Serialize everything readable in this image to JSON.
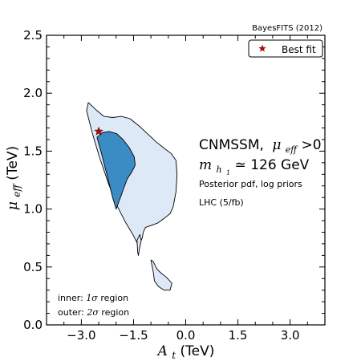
{
  "chart_data": {
    "type": "contour",
    "source_label": "BayesFITS (2012)",
    "xlabel": {
      "symbol": "A",
      "subscript": "t",
      "unit": " (TeV)"
    },
    "ylabel": {
      "symbol": "μ",
      "subscript": "eff",
      "unit": " (TeV)"
    },
    "xlim": [
      -4.0,
      4.0
    ],
    "ylim": [
      0.0,
      2.5
    ],
    "x_ticks": [
      {
        "value": -3.0,
        "label": "−3.0"
      },
      {
        "value": -1.5,
        "label": "−1.5"
      },
      {
        "value": 0.0,
        "label": "0.0"
      },
      {
        "value": 1.5,
        "label": "1.5"
      },
      {
        "value": 3.0,
        "label": "3.0"
      }
    ],
    "y_ticks": [
      {
        "value": 0.0,
        "label": "0.0"
      },
      {
        "value": 0.5,
        "label": "0.5"
      },
      {
        "value": 1.0,
        "label": "1.0"
      },
      {
        "value": 1.5,
        "label": "1.5"
      },
      {
        "value": 2.0,
        "label": "2.0"
      },
      {
        "value": 2.5,
        "label": "2.5"
      }
    ],
    "grid": false,
    "legend": {
      "position": "top-right",
      "entries": [
        {
          "label": "Best fit",
          "marker": "star",
          "color": "#a01010"
        }
      ]
    },
    "colors": {
      "inner": "#3b8cc4",
      "outer": "#dde9f6",
      "outline": "#000000",
      "best_fit": "#a01010"
    },
    "best_fit": {
      "x": -2.5,
      "y": 1.67
    },
    "regions": [
      {
        "name": "2σ region",
        "level": "outer",
        "points": [
          [
            -2.8,
            1.92
          ],
          [
            -2.55,
            1.85
          ],
          [
            -2.35,
            1.8
          ],
          [
            -2.1,
            1.79
          ],
          [
            -1.85,
            1.8
          ],
          [
            -1.6,
            1.78
          ],
          [
            -1.35,
            1.72
          ],
          [
            -1.1,
            1.65
          ],
          [
            -0.85,
            1.58
          ],
          [
            -0.6,
            1.52
          ],
          [
            -0.42,
            1.48
          ],
          [
            -0.28,
            1.42
          ],
          [
            -0.25,
            1.3
          ],
          [
            -0.28,
            1.15
          ],
          [
            -0.36,
            1.02
          ],
          [
            -0.45,
            0.96
          ],
          [
            -0.62,
            0.92
          ],
          [
            -0.8,
            0.88
          ],
          [
            -0.98,
            0.86
          ],
          [
            -1.08,
            0.85
          ],
          [
            -1.16,
            0.84
          ],
          [
            -1.22,
            0.8
          ],
          [
            -1.25,
            0.75
          ],
          [
            -1.35,
            0.68
          ],
          [
            -1.5,
            0.77
          ],
          [
            -1.72,
            0.88
          ],
          [
            -1.96,
            1.02
          ],
          [
            -2.22,
            1.22
          ],
          [
            -2.48,
            1.45
          ],
          [
            -2.68,
            1.65
          ],
          [
            -2.85,
            1.85
          ],
          [
            -2.8,
            1.92
          ]
        ]
      },
      {
        "name": "2σ region",
        "level": "outer",
        "points": [
          [
            -1.4,
            0.73
          ],
          [
            -1.38,
            0.63
          ],
          [
            -1.36,
            0.6
          ],
          [
            -1.34,
            0.64
          ],
          [
            -1.28,
            0.73
          ],
          [
            -1.32,
            0.78
          ],
          [
            -1.4,
            0.73
          ]
        ]
      },
      {
        "name": "2σ region",
        "level": "outer",
        "points": [
          [
            -1.0,
            0.56
          ],
          [
            -0.93,
            0.45
          ],
          [
            -0.9,
            0.38
          ],
          [
            -0.78,
            0.33
          ],
          [
            -0.62,
            0.3
          ],
          [
            -0.45,
            0.3
          ],
          [
            -0.4,
            0.36
          ],
          [
            -0.55,
            0.41
          ],
          [
            -0.72,
            0.45
          ],
          [
            -0.82,
            0.48
          ],
          [
            -0.94,
            0.55
          ],
          [
            -1.0,
            0.56
          ]
        ]
      },
      {
        "name": "1σ region",
        "level": "inner",
        "points": [
          [
            -2.55,
            1.62
          ],
          [
            -2.4,
            1.66
          ],
          [
            -2.2,
            1.67
          ],
          [
            -1.98,
            1.65
          ],
          [
            -1.8,
            1.6
          ],
          [
            -1.62,
            1.53
          ],
          [
            -1.48,
            1.45
          ],
          [
            -1.45,
            1.38
          ],
          [
            -1.55,
            1.32
          ],
          [
            -1.68,
            1.26
          ],
          [
            -1.78,
            1.18
          ],
          [
            -1.9,
            1.08
          ],
          [
            -2.0,
            1.0
          ],
          [
            -2.1,
            1.1
          ],
          [
            -2.25,
            1.28
          ],
          [
            -2.42,
            1.48
          ],
          [
            -2.55,
            1.62
          ]
        ]
      }
    ],
    "annotations": {
      "model_text": "CNMSSM,",
      "condition_symbol": "μ",
      "condition_subscript": "eff",
      "condition_rest": ">0",
      "mass_symbol": "m",
      "mass_subscript": "h",
      "mass_subsubscript": "1",
      "mass_rel": " ≃ ",
      "mass_value": "126 GeV",
      "line3": "Posterior pdf, log priors",
      "line4": "LHC (5/fb)",
      "inner_prefix": "inner: ",
      "inner_sigma": "1σ",
      "inner_suffix": " region",
      "outer_prefix": "outer: ",
      "outer_sigma": "2σ",
      "outer_suffix": " region"
    }
  }
}
